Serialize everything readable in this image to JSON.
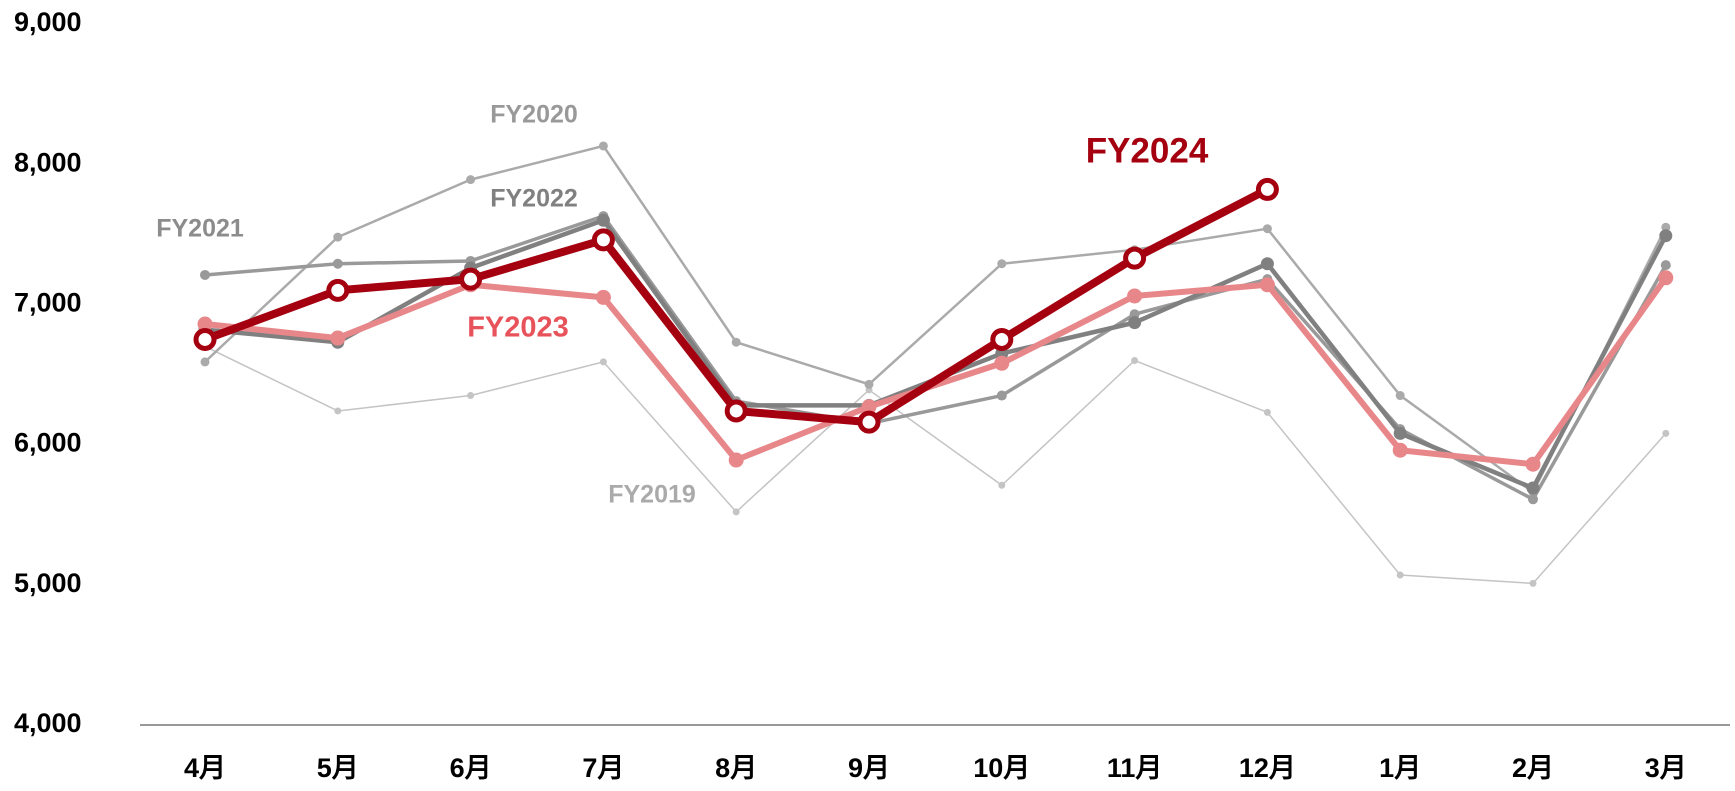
{
  "chart_data": {
    "type": "line",
    "categories": [
      "4月",
      "5月",
      "6月",
      "7月",
      "8月",
      "9月",
      "10月",
      "11月",
      "12月",
      "1月",
      "2月",
      "3月"
    ],
    "ylim": [
      4000,
      9000
    ],
    "yticks": [
      {
        "value": 4000,
        "label": "4,000"
      },
      {
        "value": 5000,
        "label": "5,000"
      },
      {
        "value": 6000,
        "label": "6,000"
      },
      {
        "value": 7000,
        "label": "7,000"
      },
      {
        "value": 8000,
        "label": "8,000"
      },
      {
        "value": 9000,
        "label": "9,000"
      }
    ],
    "grid": false,
    "series": [
      {
        "name": "FY2019",
        "color": "#c4c4c4",
        "values": [
          6700,
          6240,
          6350,
          6590,
          5520,
          6390,
          5710,
          6600,
          6230,
          5070,
          5010,
          6080
        ]
      },
      {
        "name": "FY2020",
        "color": "#aaaaaa",
        "values": [
          6590,
          7480,
          7890,
          8130,
          6730,
          6430,
          7290,
          7390,
          7540,
          6350,
          5660,
          7550
        ]
      },
      {
        "name": "FY2021",
        "color": "#999999",
        "values": [
          7210,
          7290,
          7310,
          7630,
          6310,
          6150,
          6350,
          6930,
          7180,
          6110,
          5610,
          7280
        ]
      },
      {
        "name": "FY2022",
        "color": "#808080",
        "values": [
          6820,
          6730,
          7260,
          7600,
          6280,
          6280,
          6650,
          6870,
          7290,
          6080,
          5690,
          7490
        ]
      },
      {
        "name": "FY2023",
        "color": "#e8878a",
        "values": [
          6860,
          6760,
          7140,
          7050,
          5890,
          6270,
          6580,
          7060,
          7140,
          5960,
          5860,
          7190
        ]
      },
      {
        "name": "FY2024",
        "color": "#a50010",
        "values": [
          6750,
          7100,
          7180,
          7460,
          6240,
          6160,
          6750,
          7330,
          7820,
          null,
          null,
          null
        ]
      }
    ]
  }
}
